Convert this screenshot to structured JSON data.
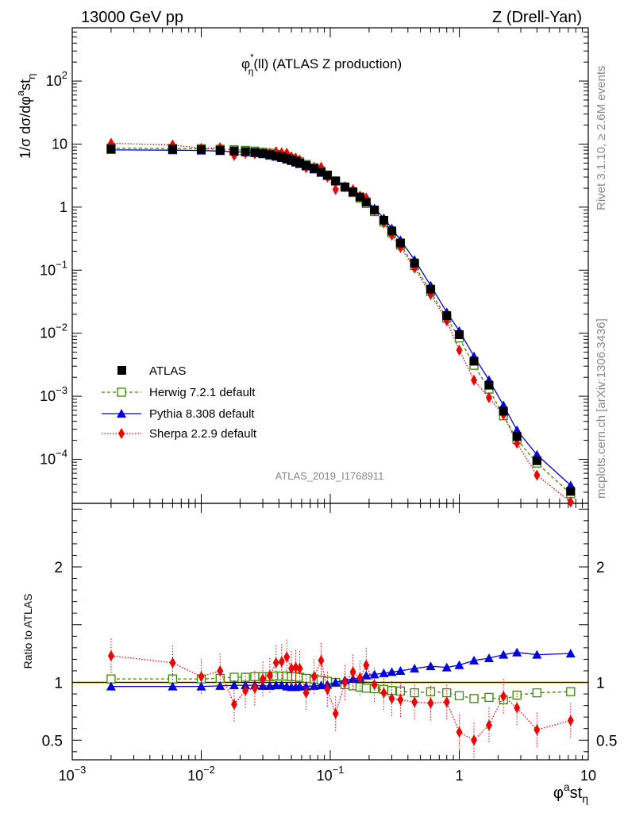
{
  "header": {
    "left": "13000 GeV pp",
    "right": "Z (Drell-Yan)"
  },
  "side_text": {
    "rivet": "Rivet 3.1.10, ≥ 2.6M events",
    "source": "mcplots.cern.ch [arXiv:1306.3436]"
  },
  "analysis_id": "ATLAS_2019_I1768911",
  "chart_data": [
    {
      "type": "line",
      "panel": "main",
      "title": "φ*η(ll) (ATLAS Z production)",
      "title_parts": {
        "base": "φ",
        "sup": "*",
        "sub": "η",
        "tail": "(ll) (ATLAS Z production)"
      },
      "ylabel": "1/σ dσ/dφ^a st_η",
      "ylabel_parts": {
        "a": "1/σ dσ/dφ",
        "sup": "a",
        "b": "st",
        "sub": "η"
      },
      "xlabel": "φ^a st_η",
      "xlabel_parts": {
        "a": "φ",
        "sup": "a",
        "b": "st",
        "sub": "η"
      },
      "x_scale": "log",
      "y_scale": "log",
      "xlim": [
        0.001,
        10
      ],
      "ylim": [
        2e-05,
        700
      ],
      "y_ticks": [
        0.0001,
        0.001,
        0.01,
        0.1,
        1,
        10,
        100
      ],
      "y_tick_labels": [
        {
          "base": "10",
          "exp": "−4"
        },
        {
          "base": "10",
          "exp": "−3"
        },
        {
          "base": "10",
          "exp": "−2"
        },
        {
          "base": "10",
          "exp": "−1"
        },
        {
          "base": "1",
          "exp": ""
        },
        {
          "base": "10",
          "exp": ""
        },
        {
          "base": "10",
          "exp": "2"
        }
      ],
      "legend_position": "lower-left",
      "x": [
        0.002,
        0.006,
        0.01,
        0.014,
        0.018,
        0.022,
        0.026,
        0.03,
        0.034,
        0.038,
        0.042,
        0.046,
        0.05,
        0.054,
        0.058,
        0.065,
        0.075,
        0.085,
        0.095,
        0.11,
        0.13,
        0.15,
        0.17,
        0.19,
        0.22,
        0.26,
        0.3,
        0.35,
        0.45,
        0.6,
        0.8,
        1.0,
        1.3,
        1.7,
        2.2,
        2.8,
        4.0,
        7.3
      ],
      "series": [
        {
          "name": "ATLAS",
          "color": "#000000",
          "marker": "square-filled",
          "line": "none",
          "values": [
            8.4,
            8.3,
            8.2,
            8.0,
            7.8,
            7.6,
            7.4,
            7.1,
            6.8,
            6.5,
            6.2,
            5.9,
            5.6,
            5.3,
            5.0,
            4.6,
            4.1,
            3.6,
            3.2,
            2.6,
            2.1,
            1.75,
            1.45,
            1.2,
            0.9,
            0.62,
            0.42,
            0.27,
            0.13,
            0.05,
            0.019,
            0.0095,
            0.0036,
            0.0015,
            0.00058,
            0.00023,
            9.5e-05,
            3.1e-05
          ],
          "y_err_rel": 0.03
        },
        {
          "name": "Herwig 7.2.1 default",
          "color": "#3a8a00",
          "marker": "square-open",
          "line": "dashed",
          "values": [
            8.65,
            8.55,
            8.45,
            8.3,
            8.15,
            7.95,
            7.75,
            7.45,
            7.15,
            6.85,
            6.53,
            6.21,
            5.88,
            5.55,
            5.23,
            4.76,
            4.22,
            3.68,
            3.23,
            2.6,
            2.06,
            1.7,
            1.39,
            1.14,
            0.85,
            0.58,
            0.39,
            0.25,
            0.118,
            0.046,
            0.0173,
            0.0084,
            0.0031,
            0.0013,
            0.00049,
            0.000205,
            8.7e-05,
            2.85e-05
          ],
          "y_err_rel": 0.02
        },
        {
          "name": "Pythia 8.308 default",
          "color": "#0000e0",
          "marker": "triangle-up-filled",
          "line": "solid",
          "values": [
            8.1,
            8.0,
            7.9,
            7.75,
            7.6,
            7.4,
            7.2,
            6.9,
            6.6,
            6.32,
            6.03,
            5.69,
            5.38,
            5.09,
            4.82,
            4.43,
            3.97,
            3.51,
            3.14,
            2.6,
            2.14,
            1.8,
            1.51,
            1.27,
            0.96,
            0.67,
            0.46,
            0.3,
            0.146,
            0.057,
            0.0215,
            0.0109,
            0.0043,
            0.00181,
            0.00072,
            0.00029,
            0.000118,
            3.87e-05
          ],
          "y_err_rel": 0.02
        },
        {
          "name": "Sherpa 2.2.9 default",
          "color": "#ee0000",
          "marker": "diamond-filled",
          "line": "dotted",
          "values": [
            10.3,
            9.7,
            8.6,
            8.8,
            6.6,
            7.1,
            7.0,
            7.3,
            7.2,
            7.6,
            7.3,
            7.2,
            6.3,
            6.0,
            5.6,
            4.2,
            4.3,
            4.3,
            3.0,
            1.9,
            2.1,
            1.9,
            1.5,
            1.4,
            0.88,
            0.56,
            0.36,
            0.23,
            0.108,
            0.041,
            0.0157,
            0.0054,
            0.0018,
            0.00095,
            0.00051,
            0.00018,
            5.6e-05,
            2.1e-05
          ],
          "y_err_rel": 0.15
        }
      ]
    },
    {
      "type": "line",
      "panel": "ratio",
      "ylabel": "Ratio to ATLAS",
      "x_scale": "log",
      "xlim": [
        0.001,
        10
      ],
      "ylim": [
        0.33,
        2.55
      ],
      "y_ticks": [
        0.5,
        1,
        2
      ],
      "y_tick_labels": [
        "0.5",
        "1",
        "2"
      ],
      "x_ticks": [
        0.001,
        0.01,
        0.1,
        1,
        10
      ],
      "x_tick_labels": [
        {
          "base": "10",
          "exp": "−3"
        },
        {
          "base": "10",
          "exp": "−2"
        },
        {
          "base": "10",
          "exp": "−1"
        },
        {
          "base": "1",
          "exp": ""
        },
        {
          "base": "10",
          "exp": ""
        }
      ],
      "band": {
        "center": 1.0,
        "half_width": 0.012,
        "color": "#ffff66"
      },
      "x": [
        0.002,
        0.006,
        0.01,
        0.014,
        0.018,
        0.022,
        0.026,
        0.03,
        0.034,
        0.038,
        0.042,
        0.046,
        0.05,
        0.054,
        0.058,
        0.065,
        0.075,
        0.085,
        0.095,
        0.11,
        0.13,
        0.15,
        0.17,
        0.19,
        0.22,
        0.26,
        0.3,
        0.35,
        0.45,
        0.6,
        0.8,
        1.0,
        1.3,
        1.7,
        2.2,
        2.8,
        4.0,
        7.3
      ],
      "series": [
        {
          "name": "Herwig 7.2.1 default",
          "color": "#3a8a00",
          "marker": "square-open",
          "line": "dashed",
          "values": [
            1.03,
            1.03,
            1.03,
            1.035,
            1.045,
            1.045,
            1.05,
            1.05,
            1.05,
            1.055,
            1.055,
            1.055,
            1.05,
            1.05,
            1.045,
            1.035,
            1.03,
            1.02,
            1.01,
            1.0,
            0.98,
            0.97,
            0.96,
            0.95,
            0.945,
            0.94,
            0.93,
            0.925,
            0.91,
            0.92,
            0.91,
            0.885,
            0.86,
            0.87,
            0.85,
            0.89,
            0.91,
            0.92
          ],
          "err": 0.02
        },
        {
          "name": "Pythia 8.308 default",
          "color": "#0000e0",
          "marker": "triangle-up-filled",
          "line": "solid",
          "values": [
            0.965,
            0.965,
            0.965,
            0.97,
            0.975,
            0.975,
            0.975,
            0.97,
            0.97,
            0.975,
            0.975,
            0.965,
            0.96,
            0.96,
            0.965,
            0.965,
            0.97,
            0.975,
            0.98,
            1.0,
            1.02,
            1.03,
            1.04,
            1.06,
            1.07,
            1.08,
            1.09,
            1.1,
            1.12,
            1.14,
            1.13,
            1.15,
            1.19,
            1.21,
            1.24,
            1.26,
            1.24,
            1.25
          ],
          "err": 0.02
        },
        {
          "name": "Sherpa 2.2.9 default",
          "color": "#ee0000",
          "marker": "diamond-filled",
          "line": "dotted",
          "values": [
            1.23,
            1.17,
            1.05,
            1.1,
            0.81,
            0.93,
            0.95,
            1.03,
            1.06,
            1.17,
            1.18,
            1.22,
            1.12,
            1.13,
            1.12,
            0.91,
            1.05,
            1.19,
            0.94,
            0.73,
            1.0,
            1.09,
            1.04,
            1.15,
            0.98,
            0.91,
            0.86,
            0.85,
            0.83,
            0.82,
            0.83,
            0.57,
            0.5,
            0.63,
            0.88,
            0.78,
            0.59,
            0.67
          ],
          "err": 0.15
        }
      ]
    }
  ]
}
